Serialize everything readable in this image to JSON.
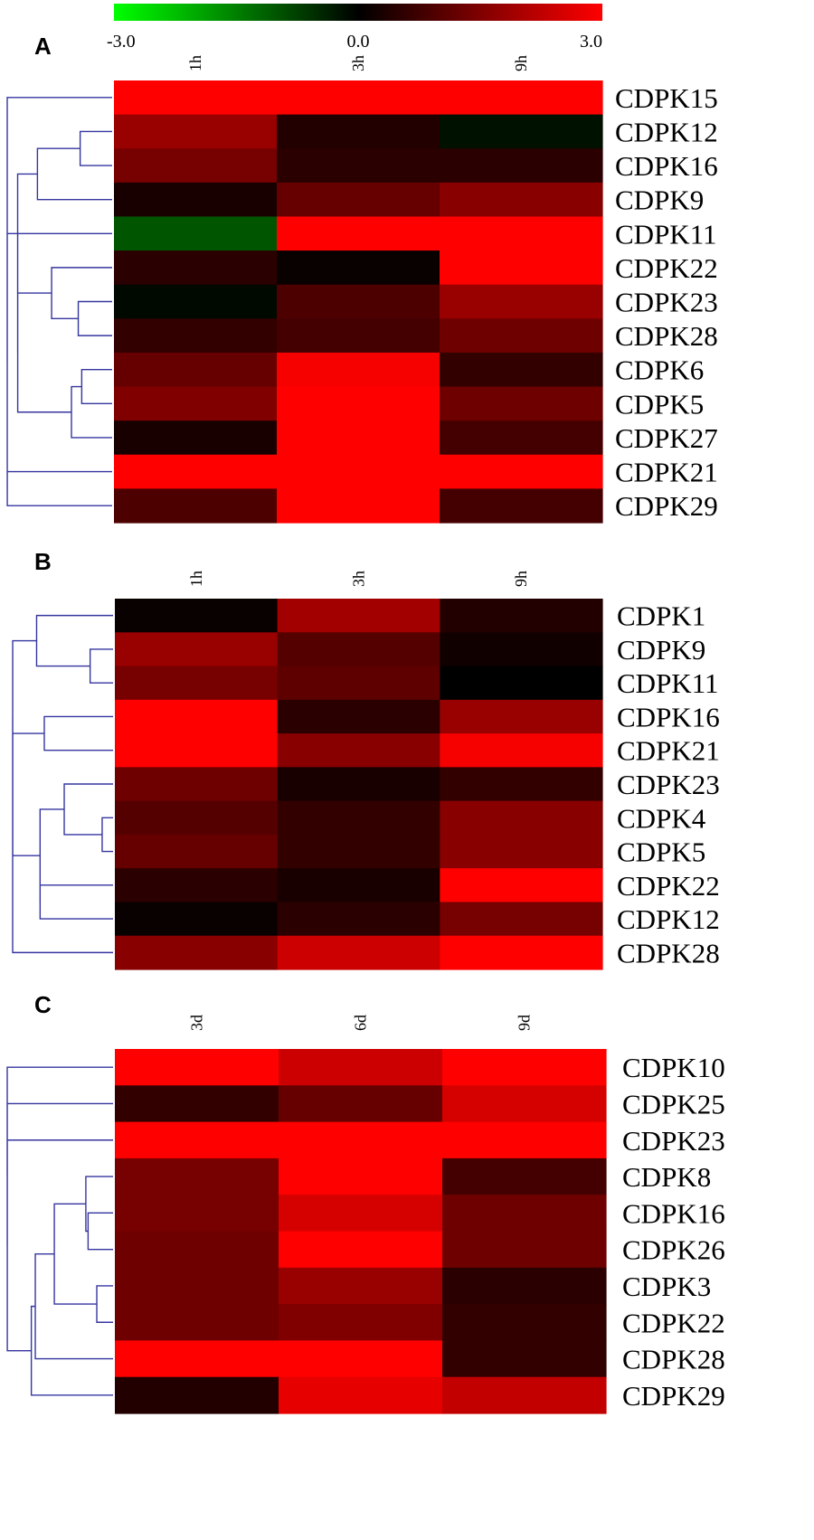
{
  "colorscale": {
    "min_label": "-3.0",
    "mid_label": "0.0",
    "max_label": "3.0",
    "min_value": -3.0,
    "mid_value": 0.0,
    "max_value": 3.0,
    "low_color": "#00ff00",
    "mid_color": "#000000",
    "high_color": "#ff0000"
  },
  "chart_data": [
    {
      "type": "heatmap",
      "panel": "A",
      "columns": [
        "1h",
        "3h",
        "9h"
      ],
      "rows": [
        "CDPK15",
        "CDPK12",
        "CDPK16",
        "CDPK9",
        "CDPK11",
        "CDPK22",
        "CDPK23",
        "CDPK28",
        "CDPK6",
        "CDPK5",
        "CDPK27",
        "CDPK21",
        "CDPK29"
      ],
      "values": [
        [
          3.0,
          3.0,
          3.0
        ],
        [
          1.8,
          0.4,
          -0.2
        ],
        [
          1.4,
          0.5,
          0.5
        ],
        [
          0.3,
          1.2,
          1.6
        ],
        [
          -1.0,
          3.0,
          3.0
        ],
        [
          0.5,
          0.1,
          3.0
        ],
        [
          -0.1,
          0.9,
          1.8
        ],
        [
          0.6,
          0.8,
          1.3
        ],
        [
          1.2,
          2.9,
          0.6
        ],
        [
          1.5,
          3.0,
          1.3
        ],
        [
          0.3,
          3.0,
          0.8
        ],
        [
          3.0,
          3.0,
          3.0
        ],
        [
          0.9,
          3.0,
          0.8
        ]
      ],
      "dendrogram": true
    },
    {
      "type": "heatmap",
      "panel": "B",
      "columns": [
        "1h",
        "3h",
        "9h"
      ],
      "rows": [
        "CDPK1",
        "CDPK9",
        "CDPK11",
        "CDPK16",
        "CDPK21",
        "CDPK23",
        "CDPK4",
        "CDPK5",
        "CDPK22",
        "CDPK12",
        "CDPK28"
      ],
      "values": [
        [
          0.1,
          1.9,
          0.4
        ],
        [
          1.8,
          1.0,
          0.2
        ],
        [
          1.4,
          1.1,
          0.0
        ],
        [
          3.0,
          0.5,
          1.8
        ],
        [
          3.0,
          1.6,
          2.9
        ],
        [
          1.3,
          0.3,
          0.6
        ],
        [
          1.0,
          0.6,
          1.6
        ],
        [
          1.2,
          0.6,
          1.6
        ],
        [
          0.5,
          0.3,
          3.0
        ],
        [
          0.1,
          0.5,
          1.4
        ],
        [
          1.6,
          2.4,
          3.0
        ]
      ],
      "dendrogram": true
    },
    {
      "type": "heatmap",
      "panel": "C",
      "columns": [
        "3d",
        "6d",
        "9d"
      ],
      "rows": [
        "CDPK10",
        "CDPK25",
        "CDPK23",
        "CDPK8",
        "CDPK16",
        "CDPK26",
        "CDPK3",
        "CDPK22",
        "CDPK28",
        "CDPK29"
      ],
      "values": [
        [
          3.0,
          2.4,
          3.0
        ],
        [
          0.6,
          1.2,
          2.5
        ],
        [
          3.0,
          3.0,
          3.0
        ],
        [
          1.4,
          3.0,
          0.8
        ],
        [
          1.4,
          2.5,
          1.3
        ],
        [
          1.3,
          3.0,
          1.3
        ],
        [
          1.3,
          1.8,
          0.5
        ],
        [
          1.3,
          1.5,
          0.6
        ],
        [
          3.0,
          3.0,
          0.6
        ],
        [
          0.4,
          2.7,
          2.3
        ]
      ],
      "dendrogram": true
    }
  ]
}
